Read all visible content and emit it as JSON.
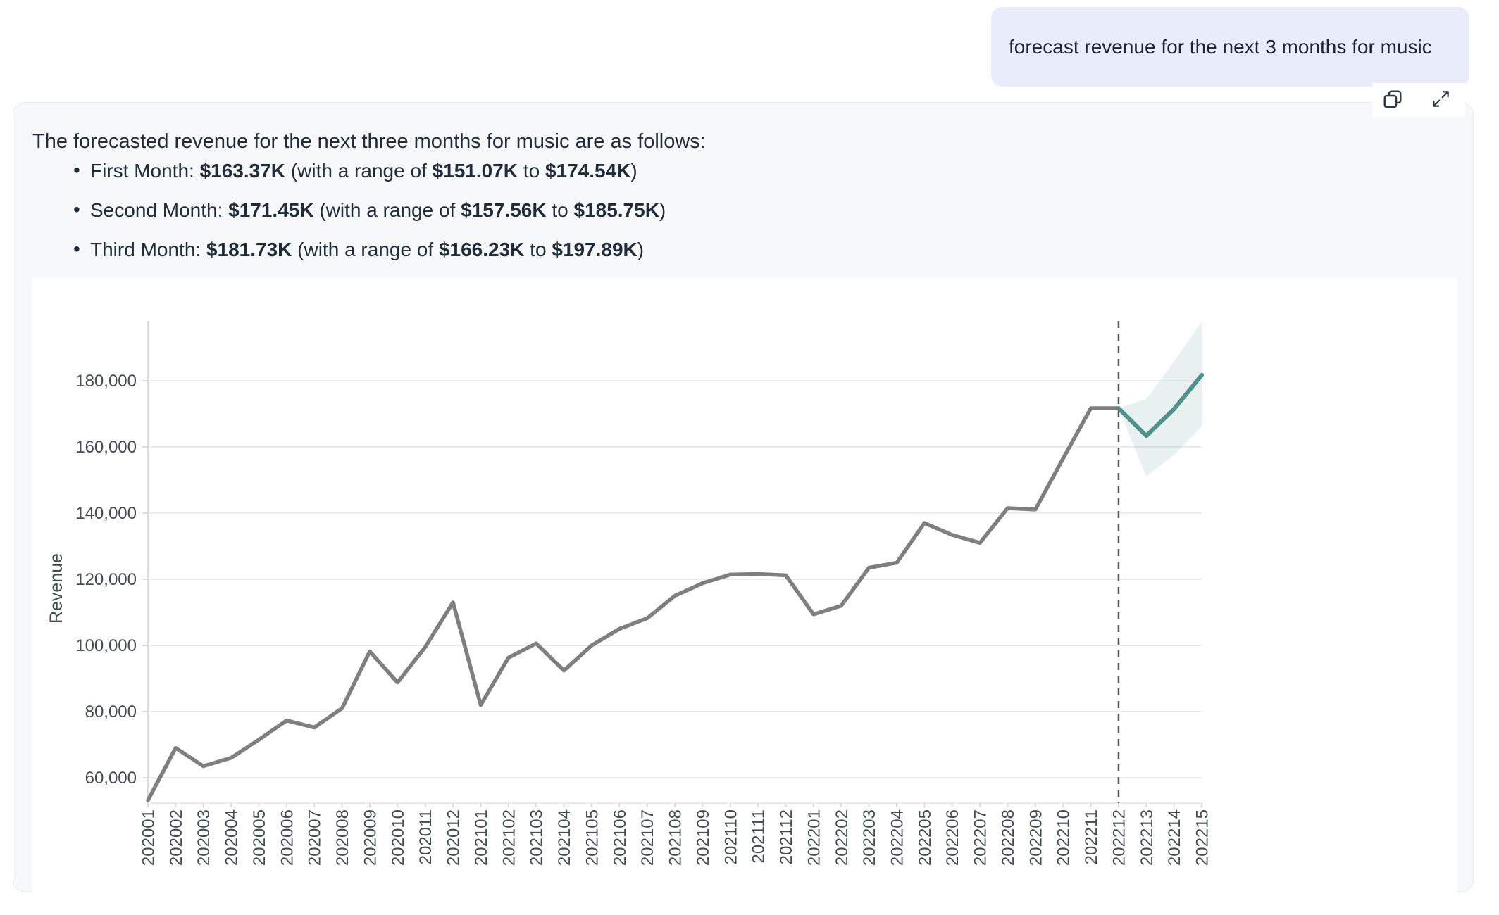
{
  "user_message": {
    "text": "forecast revenue for the next 3 months for music"
  },
  "response": {
    "intro": "The forecasted revenue for the next three months for music are as follows:",
    "bullets": [
      {
        "label": "First Month: ",
        "value": "$163.37K",
        "range_pre": " (with a range of ",
        "low": "$151.07K",
        "range_mid": " to ",
        "high": "$174.54K",
        "range_post": ")"
      },
      {
        "label": "Second Month: ",
        "value": "$171.45K",
        "range_pre": " (with a range of ",
        "low": "$157.56K",
        "range_mid": " to ",
        "high": "$185.75K",
        "range_post": ")"
      },
      {
        "label": "Third Month: ",
        "value": "$181.73K",
        "range_pre": " (with a range of ",
        "low": "$166.23K",
        "range_mid": " to ",
        "high": "$197.89K",
        "range_post": ")"
      }
    ]
  },
  "chart_data": {
    "type": "line",
    "title": "",
    "xlabel": "",
    "ylabel": "Revenue",
    "grid": "horizontal",
    "legend": "none",
    "categories": [
      "202001",
      "202002",
      "202003",
      "202004",
      "202005",
      "202006",
      "202007",
      "202008",
      "202009",
      "202010",
      "202011",
      "202012",
      "202101",
      "202102",
      "202103",
      "202104",
      "202105",
      "202106",
      "202107",
      "202108",
      "202109",
      "202110",
      "202111",
      "202112",
      "202201",
      "202202",
      "202203",
      "202204",
      "202205",
      "202206",
      "202207",
      "202208",
      "202209",
      "202210",
      "202211",
      "202212",
      "202213",
      "202214",
      "202215"
    ],
    "series": [
      {
        "name": "historical-revenue",
        "color": "#7f7f7f",
        "values": [
          53200,
          69000,
          63500,
          66000,
          71500,
          77300,
          75200,
          81000,
          98200,
          88800,
          99500,
          113000,
          82000,
          96300,
          100600,
          92400,
          100000,
          105000,
          108200,
          115000,
          118800,
          121400,
          121600,
          121200,
          109400,
          112000,
          123500,
          125000,
          137000,
          133400,
          131000,
          141500,
          141100,
          156500,
          171700,
          171700
        ]
      },
      {
        "name": "forecast-revenue",
        "color": "#4e918d",
        "band_color": "rgba(79,146,142,0.13)",
        "start_index": 35,
        "values": [
          171700,
          163370,
          171450,
          181730
        ],
        "lower": [
          171700,
          151070,
          157560,
          166230
        ],
        "upper": [
          171700,
          174540,
          185750,
          197890
        ]
      }
    ],
    "forecast_divider_category": "202212",
    "y_ticks": [
      60000,
      80000,
      100000,
      120000,
      140000,
      160000,
      180000
    ],
    "y_tick_labels": [
      "60,000",
      "80,000",
      "100,000",
      "120,000",
      "140,000",
      "160,000",
      "180,000"
    ],
    "ylim": [
      52300,
      198100
    ],
    "colors": {
      "divider": "#53575c",
      "grid": "#ebedef",
      "spine": "#d9dce0",
      "tick_text": "#444b52"
    }
  }
}
